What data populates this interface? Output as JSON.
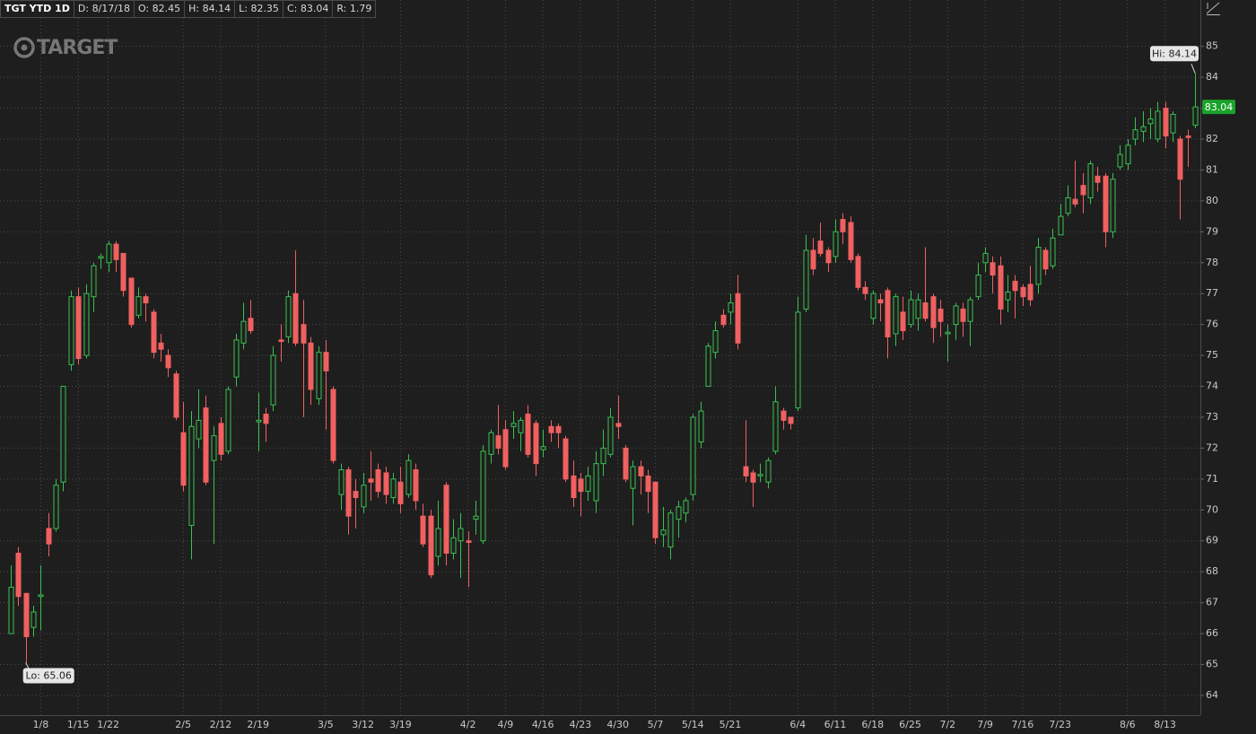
{
  "chart_data": {
    "type": "candlestick",
    "header": [
      "TGT YTD 1D",
      "D: 8/17/18",
      "O: 82.45",
      "H: 84.14",
      "L: 82.35",
      "C: 83.04",
      "R: 1.79"
    ],
    "watermark": "TARGET",
    "hi_label": "Hi: 84.14",
    "lo_label": "Lo: 65.06",
    "last_price_label": "83.04",
    "up_color": "#39c150",
    "down_color": "#f06060",
    "grid": true,
    "ylim": [
      63.36,
      86.5
    ],
    "yticks": [
      64,
      65,
      66,
      67,
      68,
      69,
      70,
      71,
      72,
      73,
      74,
      75,
      76,
      77,
      78,
      79,
      80,
      81,
      82,
      83,
      84,
      85
    ],
    "categories": [
      null,
      null,
      null,
      null,
      "1/8",
      null,
      null,
      null,
      null,
      "1/15",
      null,
      null,
      null,
      "1/22",
      null,
      null,
      null,
      null,
      null,
      null,
      null,
      null,
      null,
      "2/5",
      null,
      null,
      null,
      null,
      "2/12",
      null,
      null,
      null,
      null,
      "2/19",
      null,
      null,
      null,
      null,
      null,
      null,
      null,
      null,
      "3/5",
      null,
      null,
      null,
      null,
      "3/12",
      null,
      null,
      null,
      null,
      "3/19",
      null,
      null,
      null,
      null,
      null,
      null,
      null,
      null,
      "4/2",
      null,
      null,
      null,
      null,
      "4/9",
      null,
      null,
      null,
      null,
      "4/16",
      null,
      null,
      null,
      null,
      "4/23",
      null,
      null,
      null,
      null,
      "4/30",
      null,
      null,
      null,
      null,
      "5/7",
      null,
      null,
      null,
      null,
      "5/14",
      null,
      null,
      null,
      null,
      "5/21",
      null,
      null,
      null,
      null,
      null,
      null,
      null,
      null,
      "6/4",
      null,
      null,
      null,
      null,
      "6/11",
      null,
      null,
      null,
      null,
      "6/18",
      null,
      null,
      null,
      null,
      "6/25",
      null,
      null,
      null,
      null,
      "7/2",
      null,
      null,
      null,
      null,
      "7/9",
      null,
      null,
      null,
      null,
      "7/16",
      null,
      null,
      null,
      null,
      "7/23",
      null,
      null,
      null,
      null,
      null,
      null,
      null,
      null,
      "8/6",
      null,
      null,
      null,
      null,
      "8/13",
      null,
      null,
      null,
      null
    ],
    "open": [
      66.0,
      68.6,
      67.3,
      66.2,
      67.2,
      69.4,
      69.4,
      70.9,
      74.7,
      76.9,
      75.0,
      76.9,
      78.15,
      78.0,
      78.6,
      78.3,
      77.5,
      76.3,
      76.9,
      76.4,
      75.4,
      75.0,
      74.4,
      72.5,
      69.5,
      72.3,
      73.3,
      71.6,
      72.8,
      71.9,
      74.3,
      75.4,
      76.2,
      72.85,
      73.1,
      73.4,
      75.5,
      75.6,
      77.0,
      76.0,
      75.4,
      73.6,
      75.1,
      73.9,
      70.5,
      71.3,
      70.6,
      70.1,
      71.0,
      71.3,
      71.2,
      70.4,
      70.9,
      70.5,
      71.3,
      69.8,
      69.8,
      68.5,
      70.8,
      68.6,
      69.0,
      69.0,
      69.7,
      69.0,
      71.8,
      72.4,
      72.6,
      72.7,
      72.5,
      73.1,
      72.8,
      71.95,
      72.7,
      72.7,
      72.3,
      71.1,
      71.0,
      70.6,
      70.3,
      71.5,
      71.8,
      72.8,
      72.0,
      70.7,
      71.4,
      71.1,
      70.9,
      69.2,
      68.8,
      69.7,
      69.9,
      70.5,
      72.2,
      74.0,
      75.1,
      76.3,
      76.4,
      77.0,
      71.4,
      71.2,
      71.1,
      70.9,
      71.9,
      73.2,
      73.0,
      73.3,
      76.5,
      78.4,
      78.7,
      78.4,
      78.2,
      79.4,
      79.3,
      78.2,
      77.2,
      76.2,
      76.8,
      77.1,
      75.7,
      76.4,
      76.0,
      76.2,
      76.7,
      76.9,
      76.5,
      75.7,
      76.0,
      76.5,
      76.1,
      76.9,
      78.0,
      78.0,
      77.9,
      76.8,
      77.4,
      77.2,
      77.3,
      77.3,
      78.4,
      77.9,
      78.9,
      79.6,
      80.05,
      80.5,
      80.1,
      80.8,
      80.8,
      79.0,
      81.1,
      81.2,
      82.0,
      82.25,
      82.5,
      82.0,
      83.0,
      82.2,
      82.0,
      82.1,
      82.45
    ],
    "high": [
      68.2,
      68.8,
      67.3,
      66.9,
      68.2,
      69.9,
      71.0,
      74.0,
      77.1,
      77.2,
      77.3,
      78.0,
      78.3,
      78.7,
      78.7,
      78.3,
      77.5,
      77.2,
      77.0,
      76.5,
      75.7,
      75.2,
      74.5,
      73.5,
      73.2,
      73.9,
      73.7,
      72.7,
      73.0,
      74.0,
      75.7,
      76.7,
      76.8,
      73.8,
      73.3,
      75.3,
      76.0,
      77.1,
      78.4,
      76.8,
      75.6,
      75.3,
      75.5,
      74.0,
      71.5,
      71.4,
      71.0,
      71.2,
      71.9,
      71.5,
      71.4,
      71.2,
      71.4,
      71.8,
      71.5,
      70.2,
      70.0,
      70.3,
      70.9,
      69.7,
      69.9,
      69.3,
      70.3,
      72.1,
      72.6,
      73.4,
      72.9,
      73.2,
      73.0,
      73.4,
      72.9,
      72.6,
      72.9,
      72.8,
      72.4,
      71.6,
      71.2,
      71.4,
      71.9,
      72.6,
      73.3,
      73.7,
      72.1,
      71.6,
      71.6,
      71.3,
      70.9,
      70.1,
      70.0,
      70.3,
      70.4,
      73.1,
      73.5,
      75.4,
      76.1,
      76.5,
      77.0,
      77.6,
      72.9,
      71.3,
      71.5,
      71.7,
      74.0,
      73.3,
      73.0,
      76.9,
      78.9,
      78.8,
      79.3,
      78.5,
      79.4,
      79.6,
      79.5,
      78.3,
      77.4,
      77.1,
      77.0,
      77.2,
      77.0,
      76.9,
      77.1,
      77.0,
      78.5,
      77.0,
      76.8,
      76.0,
      76.7,
      76.7,
      76.9,
      78.0,
      78.5,
      78.2,
      78.2,
      77.6,
      77.6,
      77.3,
      77.9,
      78.8,
      78.5,
      79.1,
      79.9,
      80.5,
      81.3,
      80.9,
      81.3,
      81.1,
      80.9,
      80.9,
      81.8,
      82.0,
      82.7,
      82.9,
      83.0,
      83.2,
      83.2,
      82.9,
      82.1,
      82.3,
      84.14
    ],
    "low": [
      66.0,
      66.9,
      65.06,
      65.9,
      66.1,
      68.5,
      69.3,
      70.6,
      74.5,
      74.7,
      74.9,
      76.4,
      77.8,
      77.7,
      77.7,
      76.9,
      75.9,
      76.2,
      76.1,
      74.9,
      74.8,
      74.3,
      72.9,
      70.6,
      68.4,
      72.0,
      70.8,
      68.9,
      71.6,
      71.8,
      74.0,
      75.2,
      75.7,
      71.9,
      72.2,
      73.2,
      74.8,
      75.4,
      75.3,
      73.0,
      73.4,
      73.4,
      72.6,
      71.5,
      70.0,
      69.2,
      69.4,
      69.9,
      70.3,
      70.4,
      70.2,
      70.2,
      69.9,
      70.4,
      70.0,
      68.8,
      67.8,
      68.2,
      68.2,
      68.4,
      67.8,
      67.5,
      69.2,
      68.9,
      71.5,
      71.8,
      71.3,
      72.3,
      71.9,
      71.7,
      71.1,
      71.7,
      72.2,
      72.0,
      70.9,
      70.1,
      69.8,
      70.3,
      69.9,
      71.1,
      71.7,
      72.3,
      70.9,
      69.5,
      70.5,
      69.9,
      68.9,
      68.8,
      68.4,
      69.1,
      69.6,
      70.3,
      72.0,
      74.0,
      74.9,
      75.9,
      76.0,
      75.2,
      70.9,
      70.1,
      70.9,
      70.7,
      71.8,
      72.6,
      72.6,
      73.2,
      76.4,
      77.6,
      78.2,
      77.7,
      78.0,
      78.6,
      78.0,
      77.1,
      76.8,
      76.0,
      76.1,
      74.9,
      75.3,
      75.5,
      75.9,
      75.8,
      76.1,
      75.4,
      75.6,
      74.8,
      75.5,
      75.6,
      75.3,
      76.8,
      77.7,
      77.0,
      76.0,
      76.4,
      76.2,
      76.6,
      76.6,
      77.0,
      77.6,
      77.8,
      78.9,
      79.5,
      79.8,
      79.6,
      79.9,
      80.3,
      78.5,
      78.8,
      81.0,
      81.0,
      81.8,
      81.9,
      82.0,
      81.9,
      81.7,
      81.9,
      79.4,
      81.1,
      82.35
    ],
    "close": [
      67.5,
      67.2,
      65.9,
      66.7,
      67.25,
      68.9,
      70.8,
      74.0,
      76.9,
      74.9,
      77.0,
      77.9,
      78.2,
      78.6,
      78.1,
      77.1,
      76.0,
      76.9,
      76.7,
      75.1,
      75.2,
      74.6,
      73.0,
      70.8,
      72.7,
      72.9,
      70.9,
      72.4,
      71.8,
      73.9,
      75.5,
      76.1,
      75.8,
      72.9,
      72.8,
      75.0,
      75.45,
      76.9,
      75.4,
      75.4,
      73.9,
      75.1,
      74.5,
      71.6,
      71.3,
      69.8,
      70.4,
      70.8,
      70.9,
      70.6,
      70.5,
      71.0,
      70.2,
      71.6,
      70.3,
      68.9,
      67.9,
      69.4,
      68.6,
      69.1,
      69.4,
      68.95,
      69.8,
      71.9,
      72.5,
      72.0,
      71.4,
      72.8,
      72.9,
      71.8,
      71.5,
      72.05,
      72.5,
      72.5,
      71.0,
      70.4,
      70.6,
      71.1,
      71.5,
      72.0,
      73.0,
      72.7,
      71.0,
      71.4,
      71.1,
      70.6,
      69.1,
      69.35,
      69.9,
      70.1,
      70.3,
      73.0,
      73.2,
      75.3,
      75.8,
      76.0,
      76.7,
      75.4,
      71.1,
      70.9,
      71.15,
      71.6,
      73.5,
      72.9,
      72.8,
      76.4,
      78.4,
      77.8,
      78.3,
      78.0,
      79.0,
      79.0,
      78.1,
      77.2,
      77.0,
      77.0,
      76.7,
      75.6,
      76.9,
      75.8,
      76.8,
      76.8,
      76.2,
      75.9,
      76.1,
      75.75,
      76.6,
      76.1,
      76.8,
      77.6,
      78.3,
      77.6,
      76.5,
      77.05,
      77.1,
      76.9,
      76.8,
      78.5,
      77.8,
      78.8,
      79.5,
      80.1,
      79.9,
      80.2,
      81.2,
      80.6,
      79.0,
      80.7,
      81.5,
      81.8,
      82.3,
      82.4,
      82.65,
      82.9,
      82.1,
      82.8,
      80.7,
      82.05,
      83.04
    ]
  }
}
